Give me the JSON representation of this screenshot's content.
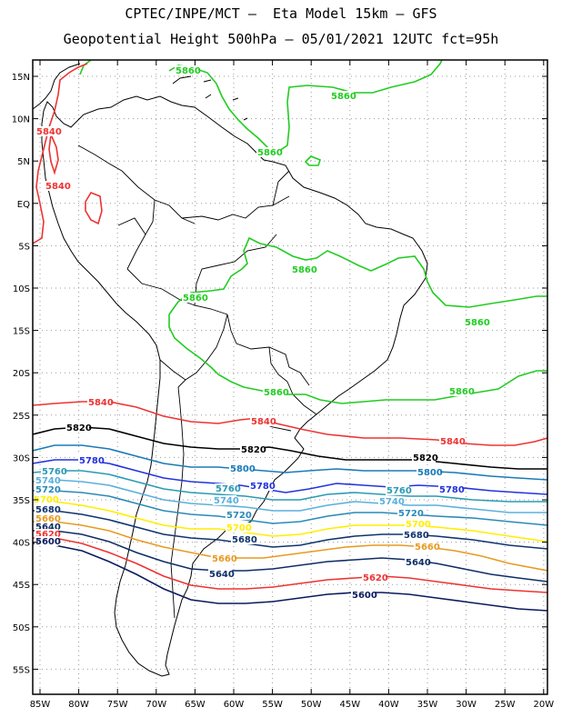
{
  "title_line1": "CPTEC/INPE/MCT –  Eta Model 15km – GFS",
  "title_line2": "Geopotential Height 500hPa – 05/01/2021 12UTC fct=95h",
  "lat_labels": [
    "15N",
    "10N",
    "5N",
    "EQ",
    "5S",
    "10S",
    "15S",
    "20S",
    "25S",
    "30S",
    "35S",
    "40S",
    "45S",
    "50S",
    "55S"
  ],
  "lon_labels": [
    "85W",
    "80W",
    "75W",
    "70W",
    "65W",
    "60W",
    "55W",
    "50W",
    "45W",
    "40W",
    "35W",
    "30W",
    "25W",
    "20W"
  ],
  "colors": {
    "c5860": "#22cc22",
    "c5840": "#ee3333",
    "c5820": "#000000",
    "c5800": "#1a7ab8",
    "c5780": "#2233dd",
    "c5760": "#2a9ab4",
    "c5740": "#5ab0dc",
    "c5720": "#2a8ab8",
    "c5700": "#ffee00",
    "c5680": "#0f3370",
    "c5660": "#e89a20",
    "c5640": "#0f2e66",
    "c5620": "#ee3333",
    "c5600": "#0a1a5c",
    "coast": "#000000"
  },
  "contour_labels": {
    "l5860": "5860",
    "l5840": "5840",
    "l5820": "5820",
    "l5800": "5800",
    "l5780": "5780",
    "l5760": "5760",
    "l5740": "5740",
    "l5720": "5720",
    "l5700": "5700",
    "l5680": "5680",
    "l5660": "5660",
    "l5640": "5640",
    "l5620": "5620",
    "l5600": "5600"
  }
}
